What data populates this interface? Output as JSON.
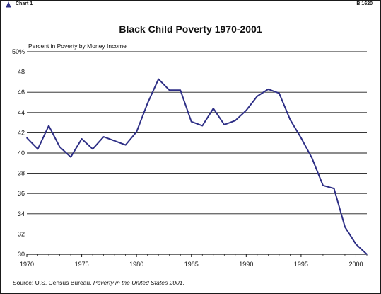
{
  "header": {
    "chart_label": "Chart 1",
    "code": "B 1620"
  },
  "source": {
    "prefix": "Source: U.S. Census Bureau, ",
    "publication": "Poverty in the United States 2001",
    "suffix": "."
  },
  "colors": {
    "line": "#2e2f86",
    "grid": "#1a1a1a",
    "text": "#111111"
  },
  "chart_data": {
    "type": "line",
    "title": "Black Child Poverty 1970-2001",
    "ylabel": "Percent in Poverty by Money Income",
    "xlabel": "",
    "xlim": [
      1970,
      2001
    ],
    "ylim": [
      30,
      50
    ],
    "x_ticks": [
      1970,
      1975,
      1980,
      1985,
      1990,
      1995,
      2000
    ],
    "y_ticks": [
      "30",
      "32",
      "34",
      "36",
      "38",
      "40",
      "42",
      "44",
      "46",
      "48",
      "50%"
    ],
    "grid": "horizontal",
    "x": [
      1970,
      1971,
      1972,
      1973,
      1974,
      1975,
      1976,
      1977,
      1978,
      1979,
      1980,
      1981,
      1982,
      1983,
      1984,
      1985,
      1986,
      1987,
      1988,
      1989,
      1990,
      1991,
      1992,
      1993,
      1994,
      1995,
      1996,
      1997,
      1998,
      1999,
      2000,
      2001
    ],
    "series": [
      {
        "values": [
          41.5,
          40.4,
          42.7,
          40.6,
          39.6,
          41.4,
          40.4,
          41.6,
          41.2,
          40.8,
          42.1,
          44.9,
          47.3,
          46.2,
          46.2,
          43.1,
          42.7,
          44.4,
          42.8,
          43.2,
          44.2,
          45.6,
          46.3,
          45.9,
          43.3,
          41.5,
          39.5,
          36.8,
          36.5,
          32.7,
          31.0,
          30.0
        ]
      }
    ]
  }
}
